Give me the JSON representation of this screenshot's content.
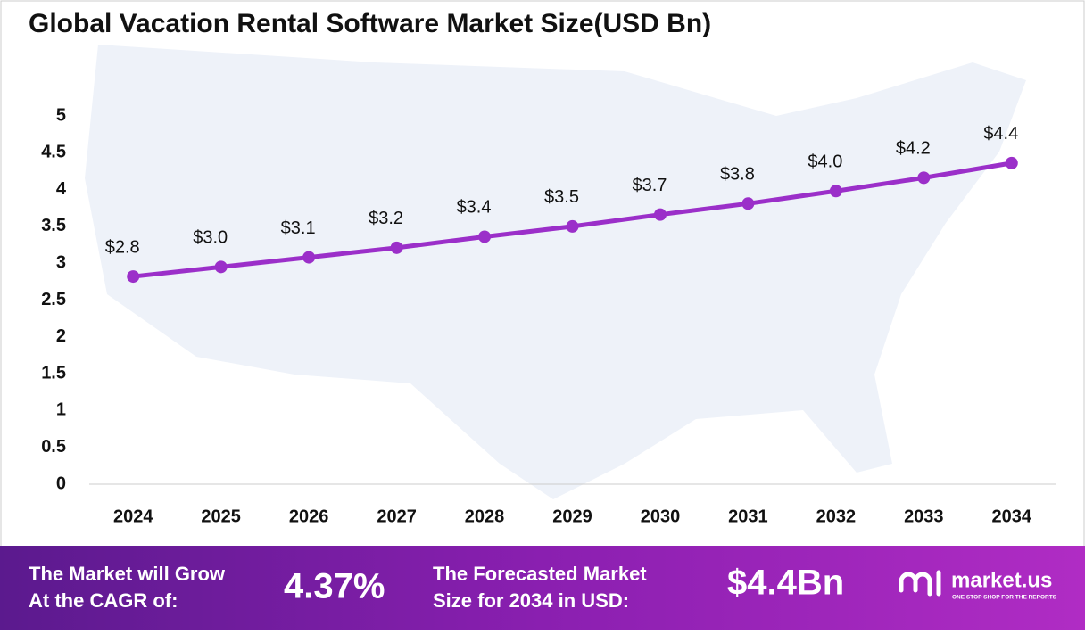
{
  "chart_data": {
    "type": "line",
    "title": "Global Vacation Rental Software Market Size(USD Bn)",
    "categories": [
      "2024",
      "2025",
      "2026",
      "2027",
      "2028",
      "2029",
      "2030",
      "2031",
      "2032",
      "2033",
      "2034"
    ],
    "series": [
      {
        "color": "#9b2fc9",
        "values": [
          2.82,
          2.95,
          3.08,
          3.21,
          3.36,
          3.5,
          3.66,
          3.81,
          3.98,
          4.16,
          4.36
        ],
        "value_labels": [
          "$2.8",
          "$3.0",
          "$3.1",
          "$3.2",
          "$3.4",
          "$3.5",
          "$3.7",
          "$3.8",
          "$4.0",
          "$4.2",
          "$4.4"
        ]
      }
    ],
    "ylim": [
      0,
      5
    ],
    "yticks": [
      0,
      0.5,
      1,
      1.5,
      2,
      2.5,
      3,
      3.5,
      4,
      4.5,
      5
    ],
    "grid": false
  },
  "footer": {
    "cagr_label": [
      "The Market will Grow",
      "At the CAGR of:"
    ],
    "cagr_value": "4.37%",
    "forecast_label": [
      "The Forecasted Market",
      "Size for 2034 in USD:"
    ],
    "forecast_value": "$4.4Bn",
    "brand": "market.us",
    "tagline": "ONE STOP SHOP FOR THE REPORTS"
  }
}
